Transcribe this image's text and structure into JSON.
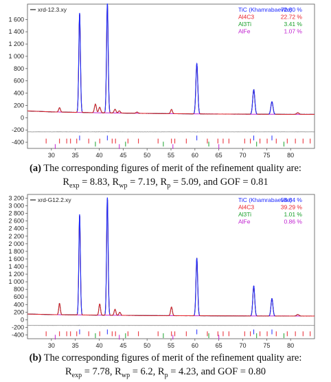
{
  "panels": [
    {
      "file_label": "xrd-12.3.xy",
      "legend": [
        {
          "name": "TiC (Khamrabaevite)",
          "pct": "72.80 %",
          "color": "#1f2bff"
        },
        {
          "name": "Al4C3",
          "pct": "22.72 %",
          "color": "#e8202a"
        },
        {
          "name": "Al3Ti",
          "pct": "3.41 %",
          "color": "#18a02a"
        },
        {
          "name": "AlFe",
          "pct": "1.07 %",
          "color": "#c021d0"
        }
      ],
      "caption": {
        "tag": "(a)",
        "text": " The corresponding figures of merit of the refinement quality are:",
        "fom": [
          {
            "sym": "R",
            "sub": "exp",
            "val": " = 8.83, "
          },
          {
            "sym": "R",
            "sub": "wp",
            "val": " = 7.19, "
          },
          {
            "sym": "R",
            "sub": "p",
            "val": " = 5.09, and GOF = 0.81"
          }
        ]
      }
    },
    {
      "file_label": "xrd-G12.2.xy",
      "legend": [
        {
          "name": "TiC (Khamrabaevite)",
          "pct": "58.84 %",
          "color": "#1f2bff"
        },
        {
          "name": "Al4C3",
          "pct": "39.29 %",
          "color": "#e8202a"
        },
        {
          "name": "Al3Ti",
          "pct": "1.01 %",
          "color": "#18a02a"
        },
        {
          "name": "AlFe",
          "pct": "0.86 %",
          "color": "#c021d0"
        }
      ],
      "caption": {
        "tag": "(b)",
        "text": " The corresponding figures of merit of the refinement quality are:",
        "fom": [
          {
            "sym": "R",
            "sub": "exp",
            "val": " = 7.78, "
          },
          {
            "sym": "R",
            "sub": "wp",
            "val": " = 6.2, "
          },
          {
            "sym": "R",
            "sub": "p",
            "val": " = 4.23, and GOF = 0.80"
          }
        ]
      }
    }
  ],
  "chart_data": [
    {
      "type": "line",
      "xlim": [
        25,
        85
      ],
      "ylim": [
        -500,
        1850
      ],
      "y_ticks": [
        1600,
        1400,
        1200,
        1000,
        800,
        600,
        400,
        200,
        0,
        -200,
        -400
      ],
      "y_tick_labels": [
        "1 600",
        "1 400",
        "1 200",
        "1 000",
        "800",
        "600",
        "400",
        "200",
        "0",
        "-200",
        "-400"
      ],
      "x_ticks": [
        30,
        35,
        40,
        45,
        50,
        55,
        60,
        65,
        70,
        75,
        80
      ],
      "x_tick_labels": [
        "30",
        "35",
        "40",
        "45",
        "50",
        "55",
        "60",
        "65",
        "70",
        "75",
        "80"
      ],
      "background": [
        [
          25,
          110
        ],
        [
          30,
          95
        ],
        [
          40,
          80
        ],
        [
          50,
          70
        ],
        [
          60,
          62
        ],
        [
          70,
          58
        ],
        [
          80,
          55
        ],
        [
          85,
          55
        ]
      ],
      "peaks": [
        {
          "x": 31.7,
          "h": 70,
          "w": 0.18
        },
        {
          "x": 35.9,
          "h": 1620,
          "w": 0.17
        },
        {
          "x": 39.2,
          "h": 140,
          "w": 0.2
        },
        {
          "x": 40.1,
          "h": 90,
          "w": 0.2
        },
        {
          "x": 41.7,
          "h": 1780,
          "w": 0.17
        },
        {
          "x": 43.3,
          "h": 60,
          "w": 0.2
        },
        {
          "x": 44.2,
          "h": 35,
          "w": 0.2
        },
        {
          "x": 47.9,
          "h": 20,
          "w": 0.2
        },
        {
          "x": 55.1,
          "h": 70,
          "w": 0.18
        },
        {
          "x": 60.4,
          "h": 820,
          "w": 0.2
        },
        {
          "x": 72.3,
          "h": 400,
          "w": 0.22
        },
        {
          "x": 76.1,
          "h": 205,
          "w": 0.22
        },
        {
          "x": 81.5,
          "h": 25,
          "w": 0.25
        }
      ],
      "difference_offset": -230,
      "tick_rows": [
        {
          "phase": "TiC (Khamrabaevite)",
          "color": "#1f2bff",
          "y": -330,
          "x": [
            35.9,
            41.7,
            60.4,
            72.3,
            76.1
          ]
        },
        {
          "phase": "Al4C3",
          "color": "#e8202a",
          "y": -380,
          "x": [
            28.9,
            31.7,
            33.2,
            34.0,
            35.3,
            37.8,
            40.1,
            42.7,
            43.4,
            46.0,
            48.2,
            52.3,
            55.1,
            55.8,
            58.2,
            62.6,
            64.8,
            65.9,
            67.1,
            70.4,
            71.6,
            73.6,
            75.1,
            77.0,
            79.3,
            81.0,
            82.6,
            84.1
          ]
        },
        {
          "phase": "Al3Ti",
          "color": "#18a02a",
          "y": -430,
          "x": [
            39.2,
            45.5,
            53.4,
            62.9,
            72.9,
            78.6
          ]
        },
        {
          "phase": "AlFe",
          "color": "#c021d0",
          "y": -470,
          "x": [
            30.8,
            44.2,
            55.4,
            65.0
          ]
        }
      ]
    },
    {
      "type": "line",
      "xlim": [
        25,
        85
      ],
      "ylim": [
        -500,
        3300
      ],
      "y_ticks": [
        3200,
        3000,
        2800,
        2600,
        2400,
        2200,
        2000,
        1800,
        1600,
        1400,
        1200,
        1000,
        800,
        600,
        400,
        200,
        0,
        -200,
        -400
      ],
      "y_tick_labels": [
        "3 200",
        "3 000",
        "2 800",
        "2 600",
        "2 400",
        "2 200",
        "2 000",
        "1 800",
        "1 600",
        "1 400",
        "1 200",
        "1 000",
        "800",
        "600",
        "400",
        "200",
        "0",
        "-200",
        "-400"
      ],
      "x_ticks": [
        30,
        35,
        40,
        45,
        50,
        55,
        60,
        65,
        70,
        75,
        80
      ],
      "x_tick_labels": [
        "30",
        "35",
        "40",
        "45",
        "50",
        "55",
        "60",
        "65",
        "70",
        "75",
        "80"
      ],
      "background": [
        [
          25,
          150
        ],
        [
          30,
          135
        ],
        [
          40,
          120
        ],
        [
          50,
          110
        ],
        [
          60,
          105
        ],
        [
          70,
          100
        ],
        [
          80,
          98
        ],
        [
          85,
          98
        ]
      ],
      "peaks": [
        {
          "x": 31.7,
          "h": 300,
          "w": 0.16
        },
        {
          "x": 35.9,
          "h": 2650,
          "w": 0.16
        },
        {
          "x": 40.1,
          "h": 300,
          "w": 0.17
        },
        {
          "x": 41.7,
          "h": 3100,
          "w": 0.16
        },
        {
          "x": 43.3,
          "h": 160,
          "w": 0.18
        },
        {
          "x": 44.3,
          "h": 80,
          "w": 0.18
        },
        {
          "x": 55.1,
          "h": 230,
          "w": 0.18
        },
        {
          "x": 60.4,
          "h": 1520,
          "w": 0.18
        },
        {
          "x": 72.3,
          "h": 790,
          "w": 0.2
        },
        {
          "x": 76.1,
          "h": 460,
          "w": 0.2
        },
        {
          "x": 81.5,
          "h": 40,
          "w": 0.25
        }
      ],
      "difference_offset": -150,
      "tick_rows": [
        {
          "phase": "TiC (Khamrabaevite)",
          "color": "#1f2bff",
          "y": -320,
          "x": [
            35.9,
            41.7,
            60.4,
            72.3,
            76.1
          ]
        },
        {
          "phase": "Al4C3",
          "color": "#e8202a",
          "y": -370,
          "x": [
            28.9,
            31.7,
            33.2,
            34.0,
            35.3,
            37.8,
            40.1,
            42.7,
            43.4,
            46.0,
            48.2,
            52.3,
            55.1,
            55.8,
            58.2,
            62.6,
            64.8,
            65.9,
            67.1,
            70.4,
            71.6,
            73.6,
            75.1,
            77.0,
            79.3,
            81.0,
            82.6,
            84.1
          ]
        },
        {
          "phase": "Al3Ti",
          "color": "#18a02a",
          "y": -420,
          "x": [
            39.2,
            45.5,
            53.4,
            62.9,
            72.9,
            78.6
          ]
        },
        {
          "phase": "AlFe",
          "color": "#c021d0",
          "y": -460,
          "x": [
            30.8,
            44.2,
            55.4,
            65.0
          ]
        }
      ]
    }
  ]
}
